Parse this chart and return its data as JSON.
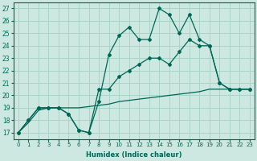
{
  "xlabel": "Humidex (Indice chaleur)",
  "bg_color": "#cce8e0",
  "grid_color": "#aad4c8",
  "line_color": "#006655",
  "xlim": [
    -0.5,
    23.5
  ],
  "ylim": [
    16.5,
    27.5
  ],
  "xticks": [
    0,
    1,
    2,
    3,
    4,
    5,
    6,
    7,
    8,
    9,
    10,
    11,
    12,
    13,
    14,
    15,
    16,
    17,
    18,
    19,
    20,
    21,
    22,
    23
  ],
  "yticks": [
    17,
    18,
    19,
    20,
    21,
    22,
    23,
    24,
    25,
    26,
    27
  ],
  "line1_y": [
    17.0,
    18.0,
    19.0,
    19.0,
    19.0,
    18.5,
    17.2,
    17.0,
    19.5,
    23.3,
    24.8,
    25.5,
    24.5,
    24.5,
    27.0,
    26.5,
    25.0,
    26.5,
    24.5,
    24.0,
    21.0,
    20.5,
    20.5,
    20.5
  ],
  "line2_y": [
    17.0,
    18.0,
    19.0,
    19.0,
    19.0,
    18.5,
    17.2,
    17.0,
    20.5,
    20.5,
    21.5,
    22.0,
    22.5,
    23.0,
    23.0,
    22.5,
    23.5,
    24.5,
    24.0,
    24.0,
    21.0,
    20.5,
    20.5,
    20.5
  ],
  "line3_y": [
    17.0,
    17.8,
    18.8,
    19.0,
    19.0,
    19.0,
    19.0,
    19.1,
    19.2,
    19.3,
    19.5,
    19.6,
    19.7,
    19.8,
    19.9,
    20.0,
    20.1,
    20.2,
    20.3,
    20.5,
    20.5,
    20.5,
    20.5,
    20.5
  ]
}
